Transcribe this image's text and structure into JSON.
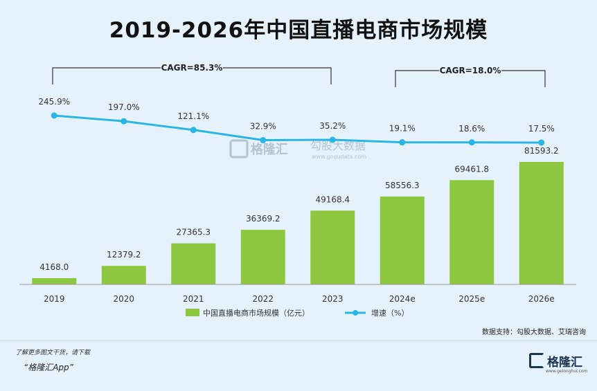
{
  "title": "2019-2026年中国直播电商市场规模",
  "chart_data": {
    "type": "bar+line",
    "categories": [
      "2019",
      "2020",
      "2021",
      "2022",
      "2023",
      "2024e",
      "2025e",
      "2026e"
    ],
    "series": [
      {
        "name": "中国直播电商市场规模（亿元）",
        "type": "bar",
        "values": [
          4168.0,
          12379.2,
          27365.3,
          36369.2,
          49168.4,
          58556.3,
          69461.8,
          81593.2
        ],
        "labels": [
          "4168.0",
          "12379.2",
          "27365.3",
          "36369.2",
          "49168.4",
          "58556.3",
          "69461.8",
          "81593.2"
        ]
      },
      {
        "name": "增速（%）",
        "type": "line",
        "values": [
          245.9,
          197.0,
          121.1,
          32.9,
          35.2,
          19.1,
          18.6,
          17.5
        ],
        "labels": [
          "245.9%",
          "197.0%",
          "121.1%",
          "32.9%",
          "35.2%",
          "19.1%",
          "18.6%",
          "17.5%"
        ]
      }
    ],
    "annotations": [
      {
        "text": "CAGR=85.3%",
        "from": "2019",
        "to": "2023"
      },
      {
        "text": "CAGR=18.0%",
        "from": "2024e",
        "to": "2026e"
      }
    ],
    "bar_color": "#8dc63f",
    "line_color": "#29b6e6"
  },
  "legend": {
    "bar_label": "中国直播电商市场规模（亿元）",
    "line_label": "增速（%）"
  },
  "watermark": {
    "name": "格隆汇",
    "brand": "勾股大数据",
    "url": "www.gogudata.com"
  },
  "source": "数据支持：勾股大数据、艾瑞咨询",
  "footer": {
    "hint": "了解更多图文干货，请下载",
    "app": "“格隆汇App”",
    "logo_name": "格隆汇",
    "logo_url": "www.gelonghui.com"
  }
}
